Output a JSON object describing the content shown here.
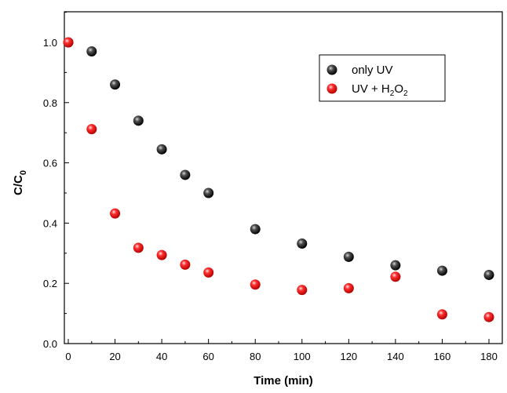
{
  "chart_data": {
    "type": "scatter",
    "title": "",
    "xlabel": "Time (min)",
    "ylabel_main": "C/C",
    "ylabel_sub": "0",
    "xlim": [
      0,
      180
    ],
    "ylim": [
      0.0,
      1.1
    ],
    "xticks": [
      0,
      20,
      40,
      60,
      80,
      100,
      120,
      140,
      160,
      180
    ],
    "yticks": [
      0.0,
      0.2,
      0.4,
      0.6,
      0.8,
      1.0
    ],
    "ytick_labels": [
      "0.0",
      "0.2",
      "0.4",
      "0.6",
      "0.8",
      "1.0"
    ],
    "grid": false,
    "legend_position": "top-right",
    "series": [
      {
        "name": "only UV",
        "color": "#000000",
        "x": [
          0,
          10,
          20,
          30,
          40,
          50,
          60,
          80,
          100,
          120,
          140,
          160,
          180
        ],
        "y": [
          1.0,
          0.97,
          0.86,
          0.74,
          0.645,
          0.56,
          0.5,
          0.38,
          0.332,
          0.288,
          0.26,
          0.242,
          0.228
        ]
      },
      {
        "name": "UV + H2O2",
        "color": "#ff0000",
        "x": [
          0,
          10,
          20,
          30,
          40,
          50,
          60,
          80,
          100,
          120,
          140,
          160,
          180
        ],
        "y": [
          1.0,
          0.712,
          0.432,
          0.318,
          0.294,
          0.262,
          0.236,
          0.196,
          0.178,
          0.184,
          0.222,
          0.097,
          0.088
        ]
      }
    ],
    "legend": {
      "entries": [
        {
          "color": "#000000",
          "text": "only UV"
        },
        {
          "color": "#ff0000",
          "parts": [
            "UV + H",
            "2",
            "O",
            "2"
          ]
        }
      ]
    }
  }
}
